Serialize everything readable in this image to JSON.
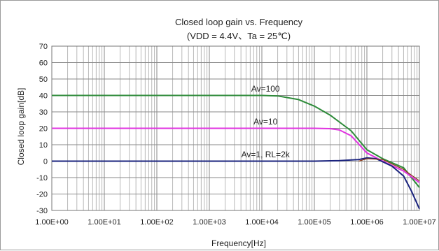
{
  "chart_data": {
    "type": "line",
    "title": "Closed loop gain vs. Frequency",
    "subtitle": "(VDD = 4.4V、Ta = 25℃)",
    "xlabel": "Frequency[Hz]",
    "ylabel": "Closed loop gain[dB]",
    "x_scale": "log",
    "xlim": [
      1,
      10000000
    ],
    "ylim": [
      -30,
      70
    ],
    "grid": true,
    "x_ticks": [
      1,
      10,
      100,
      1000,
      10000,
      100000,
      1000000,
      10000000
    ],
    "x_tick_labels": [
      "1.00E+00",
      "1.00E+01",
      "1.00E+02",
      "1.00E+03",
      "1.00E+04",
      "1.00E+05",
      "1.00E+06",
      "1.00E+07"
    ],
    "y_ticks": [
      70,
      60,
      50,
      40,
      30,
      20,
      10,
      0,
      -10,
      -20,
      -30
    ],
    "y_tick_labels": [
      "70",
      "60",
      "50",
      "40",
      "30",
      "20",
      "10",
      "0",
      "-10",
      "-20",
      "-30"
    ],
    "series": [
      {
        "name": "Av=100",
        "color": "#2e8b3a",
        "x": [
          1,
          10,
          100,
          1000,
          10000,
          20000,
          50000,
          100000,
          200000,
          500000,
          1000000,
          2000000,
          5000000,
          10000000
        ],
        "y": [
          40,
          40,
          40,
          40,
          40,
          39.7,
          37.5,
          33.5,
          28,
          18.5,
          7,
          1.5,
          -4,
          -16
        ]
      },
      {
        "name": "Av=10",
        "color": "#e033e0",
        "x": [
          1,
          10,
          100,
          1000,
          10000,
          100000,
          200000,
          300000,
          500000,
          1000000,
          2000000,
          5000000,
          10000000
        ],
        "y": [
          20,
          20,
          20,
          20,
          20,
          20,
          19.8,
          19,
          15.5,
          5,
          0,
          -6,
          -13
        ]
      },
      {
        "name": "Av=1, RL=2k",
        "color": "#1a237e",
        "x": [
          1,
          10,
          100,
          1000,
          10000,
          100000,
          300000,
          700000,
          1000000,
          1500000,
          3000000,
          5000000,
          7000000,
          10000000
        ],
        "y": [
          0,
          0,
          0,
          0,
          0,
          0,
          0.3,
          1,
          2,
          1.5,
          -3,
          -9,
          -18,
          -29
        ]
      },
      {
        "name": "",
        "color": "#8b3a1a",
        "x": [
          700000,
          1000000,
          2000000,
          5000000,
          10000000
        ],
        "y": [
          0,
          1.5,
          1,
          -5,
          -12
        ]
      }
    ],
    "annotations": [
      {
        "text": "Av=100",
        "x": 15000,
        "y": 41.5
      },
      {
        "text": "Av=10",
        "x": 15000,
        "y": 21.5
      },
      {
        "text": "Av=1, RL=2k",
        "x": 15000,
        "y": 1.5
      }
    ]
  }
}
